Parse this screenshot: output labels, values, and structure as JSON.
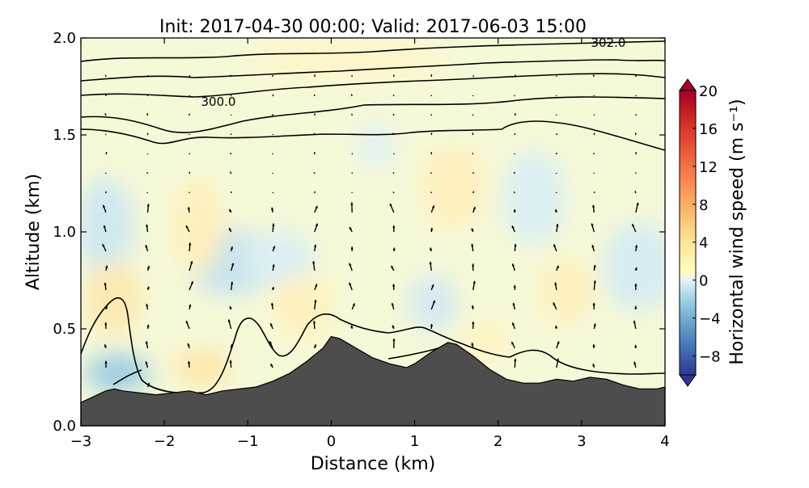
{
  "chart_data": {
    "type": "contour",
    "title": "Init: 2017-04-30 00:00; Valid: 2017-06-03 15:00",
    "xlabel": "Distance (km)",
    "ylabel": "Altitude (km)",
    "xlim": [
      -3,
      4
    ],
    "ylim": [
      0,
      2
    ],
    "xticks": [
      -3,
      -2,
      -1,
      0,
      1,
      2,
      3,
      4
    ],
    "xtick_labels": [
      "−3",
      "−2",
      "−1",
      "0",
      "1",
      "2",
      "3",
      "4"
    ],
    "yticks": [
      0.0,
      0.5,
      1.0,
      1.5,
      2.0
    ],
    "ytick_labels": [
      "0.0",
      "0.5",
      "1.0",
      "1.5",
      "2.0"
    ],
    "colorbar": {
      "label": "Horizontal wind speed (m s⁻¹)",
      "range": [
        -10,
        20
      ],
      "ticks": [
        20,
        16,
        12,
        8,
        4,
        0,
        -4,
        -8
      ],
      "tick_labels": [
        "20",
        "16",
        "12",
        "8",
        "4",
        "0",
        "−4",
        "−8"
      ],
      "colormap": "RdYlBu_r",
      "extend": "both"
    },
    "terrain": {
      "color": "#4d4d4d",
      "x": [
        -3.0,
        -2.9,
        -2.8,
        -2.7,
        -2.6,
        -2.5,
        -2.3,
        -2.1,
        -1.9,
        -1.7,
        -1.5,
        -1.3,
        -1.1,
        -0.9,
        -0.7,
        -0.5,
        -0.3,
        -0.1,
        0.0,
        0.1,
        0.3,
        0.5,
        0.7,
        0.9,
        1.0,
        1.2,
        1.4,
        1.5,
        1.7,
        1.9,
        2.1,
        2.3,
        2.5,
        2.7,
        2.9,
        3.1,
        3.3,
        3.5,
        3.7,
        3.9,
        4.0
      ],
      "y": [
        0.12,
        0.14,
        0.16,
        0.18,
        0.19,
        0.18,
        0.17,
        0.16,
        0.17,
        0.18,
        0.16,
        0.18,
        0.19,
        0.2,
        0.23,
        0.27,
        0.33,
        0.4,
        0.46,
        0.45,
        0.4,
        0.35,
        0.32,
        0.3,
        0.32,
        0.38,
        0.43,
        0.42,
        0.36,
        0.29,
        0.24,
        0.22,
        0.22,
        0.24,
        0.23,
        0.25,
        0.24,
        0.21,
        0.19,
        0.19,
        0.2
      ]
    },
    "isentropes": [
      {
        "label": "300.0",
        "label_at": [
          -1.6,
          1.67
        ]
      },
      {
        "label": "302.0",
        "label_at": [
          3.3,
          1.98
        ]
      }
    ],
    "vector_columns_x": [
      -2.7,
      -2.2,
      -1.7,
      -1.2,
      -0.7,
      -0.2,
      0.25,
      0.75,
      1.2,
      1.7,
      2.2,
      2.7,
      3.15,
      3.65
    ]
  }
}
